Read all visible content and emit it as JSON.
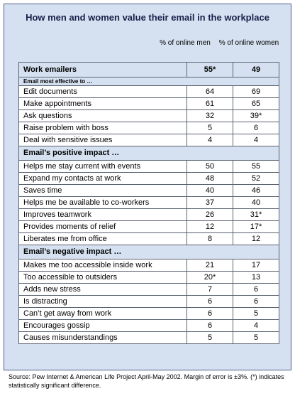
{
  "title": "How men and women value their email in the workplace",
  "columns": {
    "men": "% of online men",
    "women": "% of online women"
  },
  "work_emailers": {
    "label": "Work emailers",
    "men": "55*",
    "women": "49"
  },
  "sub_label": "Email most effective to …",
  "effective_rows": [
    {
      "label": "Edit documents",
      "men": "64",
      "women": "69"
    },
    {
      "label": "Make appointments",
      "men": "61",
      "women": "65"
    },
    {
      "label": "Ask questions",
      "men": "32",
      "women": "39*"
    },
    {
      "label": "Raise problem with boss",
      "men": "5",
      "women": "6"
    },
    {
      "label": "Deal with sensitive issues",
      "men": "4",
      "women": "4"
    }
  ],
  "positive_header": "Email’s positive impact …",
  "positive_rows": [
    {
      "label": "Helps me stay current with events",
      "men": "50",
      "women": "55"
    },
    {
      "label": "Expand my contacts at work",
      "men": "48",
      "women": "52"
    },
    {
      "label": "Saves time",
      "men": "40",
      "women": "46"
    },
    {
      "label": "Helps me be available to co-workers",
      "men": "37",
      "women": "40"
    },
    {
      "label": "Improves teamwork",
      "men": "26",
      "women": "31*"
    },
    {
      "label": "Provides moments of relief",
      "men": "12",
      "women": "17*"
    },
    {
      "label": "Liberates me from office",
      "men": "8",
      "women": "12"
    }
  ],
  "negative_header": "Email’s negative  impact …",
  "negative_rows": [
    {
      "label": "Makes me too accessible inside work",
      "men": "21",
      "women": "17"
    },
    {
      "label": "Too accessible to outsiders",
      "men": "20*",
      "women": "13"
    },
    {
      "label": "Adds new stress",
      "men": "7",
      "women": "6"
    },
    {
      "label": "Is distracting",
      "men": "6",
      "women": "6"
    },
    {
      "label": "Can’t get away from work",
      "men": "6",
      "women": "5"
    },
    {
      "label": "Encourages gossip",
      "men": "6",
      "women": "4"
    },
    {
      "label": "Causes misunderstandings",
      "men": "5",
      "women": "5"
    }
  ],
  "source": "Source:  Pew Internet & American Life Project April-May 2002.  Margin of error is ±3%. (*) indicates statistically significant difference."
}
